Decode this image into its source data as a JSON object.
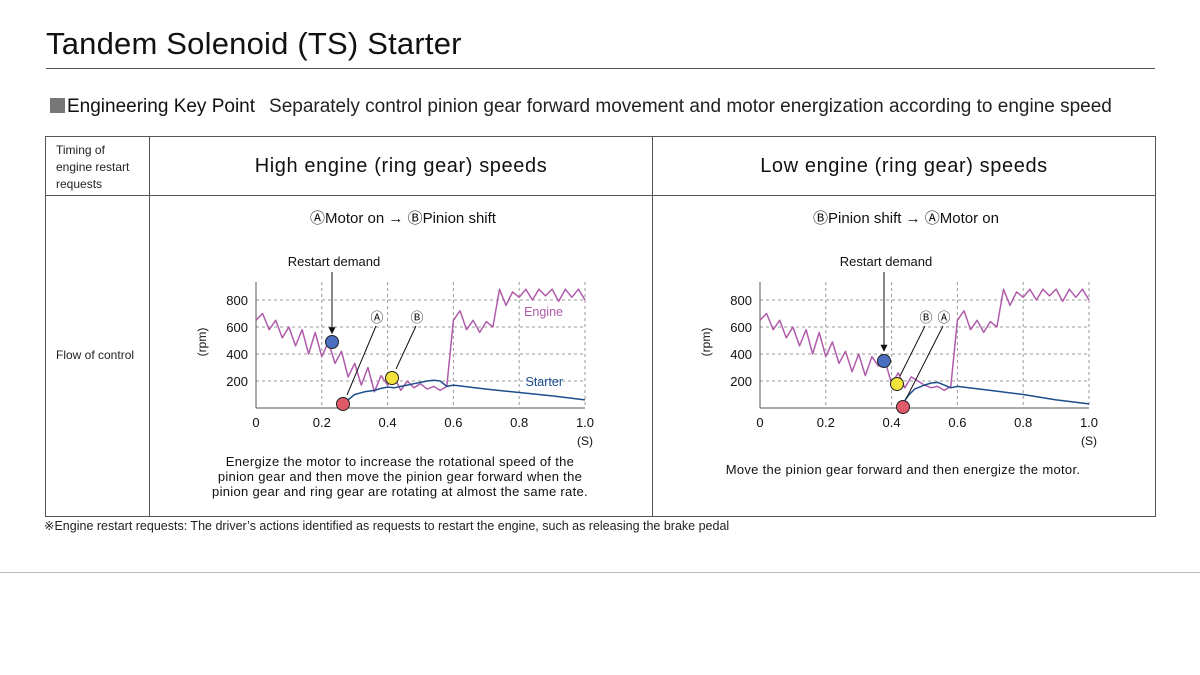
{
  "title": "Tandem Solenoid (TS) Starter",
  "key_point": {
    "heading": "Engineering Key Point",
    "text": "Separately control pinion gear forward movement and motor energization according to engine speed"
  },
  "table": {
    "row1_label_lines": [
      "Timing of",
      "engine restart",
      "requests"
    ],
    "row2_label": "Flow of control",
    "columns": [
      {
        "heading": "High engine (ring gear) speeds",
        "sequence": "ⒶMotor on → ⒷPinion shift",
        "description_lines": [
          "Energize the motor to increase the rotational speed of the",
          "pinion gear and then move the pinion gear forward when the",
          "pinion gear and ring gear are rotating at almost the same rate."
        ]
      },
      {
        "heading": "Low engine (ring gear) speeds",
        "sequence": "ⒷPinion shift → ⒶMotor on",
        "description_lines": [
          "Move the pinion gear forward and then energize the motor."
        ]
      }
    ]
  },
  "footnote": "※Engine restart requests: The driver’s actions identified as requests to restart the engine, such as releasing the brake pedal",
  "colors": {
    "engine": "#b05cab",
    "starter": "#1c4e8c",
    "grid": "#9a9a9a",
    "marker_restart": "#4a6fc0",
    "marker_motor": "#e05a6a",
    "marker_pinion": "#f2e43c"
  },
  "chart_data": [
    {
      "type": "line",
      "title": "",
      "xlabel": "(S)",
      "ylabel": "(rpm)",
      "xlim": [
        0,
        1.0
      ],
      "ylim": [
        0,
        900
      ],
      "x_ticks": [
        "0",
        "0.2",
        "0.4",
        "0.6",
        "0.8",
        "1.0"
      ],
      "y_ticks": [
        "200",
        "400",
        "600",
        "800"
      ],
      "grid": true,
      "series": [
        {
          "name": "Engine",
          "x": [
            0,
            0.02,
            0.04,
            0.06,
            0.08,
            0.1,
            0.12,
            0.14,
            0.16,
            0.18,
            0.2,
            0.22,
            0.24,
            0.26,
            0.28,
            0.3,
            0.32,
            0.34,
            0.36,
            0.38,
            0.4,
            0.42,
            0.44,
            0.46,
            0.48,
            0.5,
            0.52,
            0.54,
            0.56,
            0.58,
            0.6,
            0.62,
            0.64,
            0.66,
            0.68,
            0.7,
            0.72,
            0.74,
            0.76,
            0.78,
            0.8,
            0.82,
            0.84,
            0.86,
            0.88,
            0.9,
            0.92,
            0.94,
            0.96,
            0.98,
            1.0
          ],
          "values": [
            650,
            700,
            580,
            650,
            520,
            600,
            460,
            580,
            400,
            560,
            380,
            490,
            330,
            420,
            230,
            330,
            170,
            300,
            120,
            240,
            170,
            230,
            130,
            200,
            150,
            180,
            140,
            160,
            130,
            160,
            650,
            720,
            580,
            650,
            560,
            640,
            600,
            880,
            760,
            860,
            820,
            880,
            800,
            880,
            830,
            880,
            790,
            880,
            820,
            880,
            800
          ],
          "label": "Engine"
        },
        {
          "name": "Starter",
          "x": [
            0.27,
            0.3,
            0.33,
            0.36,
            0.38,
            0.4,
            0.42,
            0.44,
            0.46,
            0.48,
            0.5,
            0.52,
            0.54,
            0.56,
            0.58,
            0.6,
            0.7,
            0.8,
            0.9,
            1.0
          ],
          "values": [
            40,
            100,
            120,
            130,
            145,
            155,
            150,
            160,
            170,
            180,
            190,
            200,
            205,
            200,
            160,
            170,
            140,
            115,
            90,
            60
          ],
          "label": "Starter"
        }
      ],
      "annotations": [
        {
          "text": "Restart demand",
          "x": 0.23,
          "y": 480
        },
        {
          "text": "Ⓐ",
          "x": 0.27,
          "y": 40
        },
        {
          "text": "Ⓑ",
          "x": 0.41,
          "y": 200
        }
      ]
    },
    {
      "type": "line",
      "title": "",
      "xlabel": "(S)",
      "ylabel": "(rpm)",
      "xlim": [
        0,
        1.0
      ],
      "ylim": [
        0,
        900
      ],
      "x_ticks": [
        "0",
        "0.2",
        "0.4",
        "0.6",
        "0.8",
        "1.0"
      ],
      "y_ticks": [
        "200",
        "400",
        "600",
        "800"
      ],
      "grid": true,
      "series": [
        {
          "name": "Engine",
          "x": [
            0,
            0.02,
            0.04,
            0.06,
            0.08,
            0.1,
            0.12,
            0.14,
            0.16,
            0.18,
            0.2,
            0.22,
            0.24,
            0.26,
            0.28,
            0.3,
            0.32,
            0.34,
            0.36,
            0.38,
            0.4,
            0.42,
            0.44,
            0.46,
            0.48,
            0.5,
            0.52,
            0.54,
            0.56,
            0.58,
            0.6,
            0.62,
            0.64,
            0.66,
            0.68,
            0.7,
            0.72,
            0.74,
            0.76,
            0.78,
            0.8,
            0.82,
            0.84,
            0.86,
            0.88,
            0.9,
            0.92,
            0.94,
            0.96,
            0.98,
            1.0
          ],
          "values": [
            650,
            700,
            580,
            650,
            520,
            600,
            460,
            580,
            400,
            560,
            380,
            490,
            330,
            420,
            270,
            400,
            240,
            380,
            310,
            350,
            180,
            260,
            150,
            230,
            200,
            170,
            150,
            160,
            130,
            160,
            650,
            720,
            580,
            650,
            560,
            640,
            600,
            880,
            760,
            860,
            820,
            880,
            800,
            880,
            830,
            880,
            790,
            880,
            820,
            880,
            800
          ],
          "label": ""
        },
        {
          "name": "Starter",
          "x": [
            0.43,
            0.45,
            0.47,
            0.5,
            0.52,
            0.54,
            0.56,
            0.58,
            0.6,
            0.7,
            0.8,
            0.9,
            1.0
          ],
          "values": [
            20,
            90,
            140,
            170,
            185,
            190,
            170,
            150,
            160,
            130,
            100,
            60,
            30
          ],
          "label": ""
        }
      ],
      "annotations": [
        {
          "text": "Restart demand",
          "x": 0.38,
          "y": 350
        },
        {
          "text": "Ⓑ",
          "x": 0.41,
          "y": 170
        },
        {
          "text": "Ⓐ",
          "x": 0.43,
          "y": 20
        }
      ]
    }
  ]
}
